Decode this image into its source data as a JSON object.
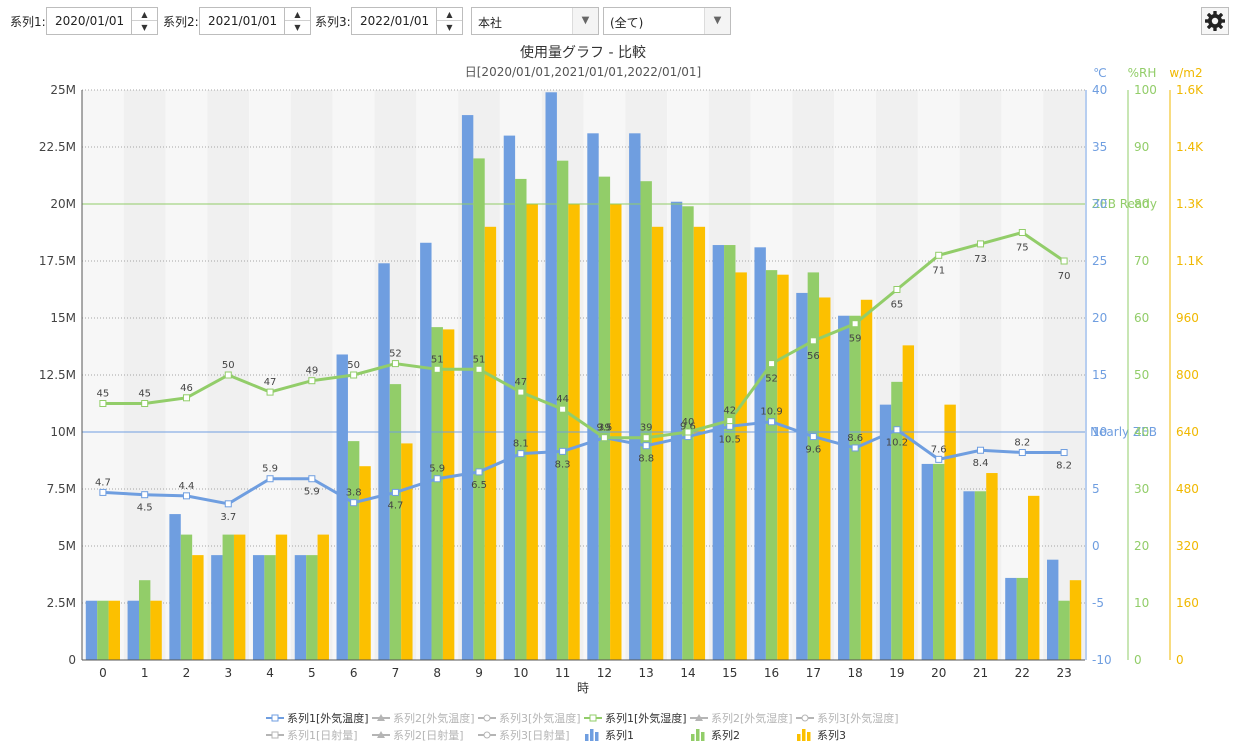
{
  "toolbar": {
    "series1_label": "系列1:",
    "series1_date": "2020/01/01",
    "series2_label": "系列2:",
    "series2_date": "2021/01/01",
    "series3_label": "系列3:",
    "series3_date": "2022/01/01",
    "location_value": "本社",
    "filter_value": "(全て)"
  },
  "colors": {
    "series1": "#6f9ee0",
    "series2": "#92cd69",
    "series3": "#fcc000",
    "temp_axis": "#6f9ee0",
    "rh_axis": "#92cd69",
    "solar_axis": "#f0b800",
    "dim": "#b5b5b5"
  },
  "chart_data": {
    "type": "bar",
    "title": "使用量グラフ - 比較",
    "subtitle": "日[2020/01/01,2021/01/01,2022/01/01]",
    "xlabel": "時",
    "categories": [
      "0",
      "1",
      "2",
      "3",
      "4",
      "5",
      "6",
      "7",
      "8",
      "9",
      "10",
      "11",
      "12",
      "13",
      "14",
      "15",
      "16",
      "17",
      "18",
      "19",
      "20",
      "21",
      "22",
      "23"
    ],
    "ylim": [
      0,
      25000000
    ],
    "y_ticks": [
      "0",
      "2.5M",
      "5M",
      "7.5M",
      "10M",
      "12.5M",
      "15M",
      "17.5M",
      "20M",
      "22.5M",
      "25M"
    ],
    "y2": {
      "unit": "℃",
      "ylim": [
        -10,
        40
      ],
      "ticks": [
        "-10",
        "-5",
        "0",
        "5",
        "10",
        "15",
        "20",
        "25",
        "30",
        "35",
        "40"
      ]
    },
    "y3": {
      "unit": "%RH",
      "ylim": [
        0,
        100
      ],
      "ticks": [
        "0",
        "10",
        "20",
        "30",
        "40",
        "50",
        "60",
        "70",
        "80",
        "90",
        "100"
      ]
    },
    "y4": {
      "unit": "w/m2",
      "ylim": [
        0,
        1600
      ],
      "ticks": [
        "0",
        "160",
        "320",
        "480",
        "640",
        "800",
        "960",
        "1.1K",
        "1.3K",
        "1.4K",
        "1.6K"
      ]
    },
    "series": [
      {
        "name": "系列1",
        "values": [
          2600000,
          2600000,
          6400000,
          4600000,
          4600000,
          4600000,
          13400000,
          17400000,
          18300000,
          23900000,
          23000000,
          24900000,
          23100000,
          23100000,
          20100000,
          18200000,
          18100000,
          16100000,
          15100000,
          11200000,
          8600000,
          7400000,
          3600000,
          4400000
        ]
      },
      {
        "name": "系列2",
        "values": [
          2600000,
          3500000,
          5500000,
          5500000,
          4600000,
          4600000,
          9600000,
          12100000,
          14600000,
          22000000,
          21100000,
          21900000,
          21200000,
          21000000,
          19900000,
          18200000,
          17100000,
          17000000,
          15100000,
          12200000,
          8600000,
          7400000,
          3600000,
          2600000
        ]
      },
      {
        "name": "系列3",
        "values": [
          2600000,
          2600000,
          4600000,
          5500000,
          5500000,
          5500000,
          8500000,
          9500000,
          14500000,
          19000000,
          20000000,
          20000000,
          20000000,
          19000000,
          19000000,
          17000000,
          16900000,
          15900000,
          15800000,
          13800000,
          11200000,
          8200000,
          7200000,
          3500000
        ]
      }
    ],
    "lines": [
      {
        "name": "系列1[外気温度]",
        "axis": "y2",
        "values": [
          4.7,
          4.5,
          4.4,
          3.7,
          5.9,
          5.9,
          3.8,
          4.7,
          5.9,
          6.5,
          8.1,
          8.3,
          9.5,
          8.8,
          9.6,
          10.5,
          10.9,
          9.6,
          8.6,
          10.2,
          7.6,
          8.4,
          8.2,
          8.2
        ],
        "labels": [
          "4.7",
          "4.5",
          "4.4",
          "3.7",
          "5.9",
          "5.9",
          "3.8",
          "4.7",
          "5.9",
          "6.5",
          "8.1",
          "8.3",
          "9.5",
          "8.8",
          "9.6",
          "10.5",
          "10.9",
          "9.6",
          "8.6",
          "10.2",
          "7.6",
          "8.4",
          "8.2",
          "8.2"
        ]
      },
      {
        "name": "系列1[外気湿度]",
        "axis": "y3",
        "values": [
          45,
          45,
          46,
          50,
          47,
          49,
          50,
          52,
          51,
          51,
          47,
          44,
          39,
          39,
          40,
          42,
          52,
          56,
          59,
          65,
          71,
          73,
          75,
          70
        ],
        "labels": [
          "45",
          "45",
          "46",
          "50",
          "47",
          "49",
          "50",
          "52",
          "51",
          "51",
          "47",
          "44",
          "39",
          "39",
          "40",
          "42",
          "52",
          "56",
          "59",
          "65",
          "71",
          "73",
          "75",
          "70"
        ]
      }
    ],
    "reference_lines": [
      {
        "label": "ZEB Ready",
        "value": 20000000,
        "color": "#92cd69"
      },
      {
        "label": "Nearly ZEB",
        "value": 10000000,
        "color": "#6f9ee0"
      }
    ],
    "grid": true
  },
  "legend": {
    "row1": [
      {
        "label": "系列1[外気温度]",
        "icon": "line-square-icon",
        "active": true,
        "color": "#6f9ee0"
      },
      {
        "label": "系列2[外気温度]",
        "icon": "line-triangle-icon",
        "active": false,
        "color": "#b5b5b5"
      },
      {
        "label": "系列3[外気温度]",
        "icon": "line-circle-icon",
        "active": false,
        "color": "#b5b5b5"
      },
      {
        "label": "系列1[外気湿度]",
        "icon": "line-square-icon",
        "active": true,
        "color": "#92cd69"
      },
      {
        "label": "系列2[外気湿度]",
        "icon": "line-triangle-icon",
        "active": false,
        "color": "#b5b5b5"
      },
      {
        "label": "系列3[外気湿度]",
        "icon": "line-circle-icon",
        "active": false,
        "color": "#b5b5b5"
      }
    ],
    "row2": [
      {
        "label": "系列1[日射量]",
        "icon": "line-square-icon",
        "active": false,
        "color": "#b5b5b5"
      },
      {
        "label": "系列2[日射量]",
        "icon": "line-triangle-icon",
        "active": false,
        "color": "#b5b5b5"
      },
      {
        "label": "系列3[日射量]",
        "icon": "line-circle-icon",
        "active": false,
        "color": "#b5b5b5"
      },
      {
        "label": "系列1",
        "icon": "bar-icon",
        "active": true,
        "color": "#6f9ee0"
      },
      {
        "label": "系列2",
        "icon": "bar-icon",
        "active": true,
        "color": "#92cd69"
      },
      {
        "label": "系列3",
        "icon": "bar-icon",
        "active": true,
        "color": "#fcc000"
      }
    ]
  }
}
